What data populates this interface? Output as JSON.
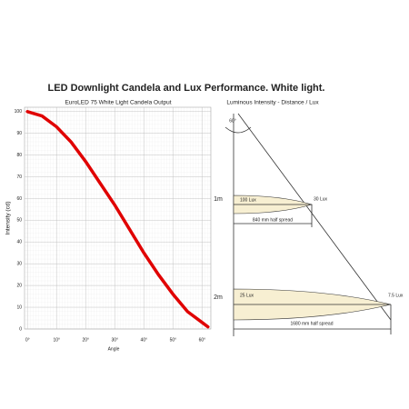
{
  "title": "LED Downlight Candela and Lux Performance. White light.",
  "chart_data": {
    "type": "line",
    "title": "EuroLED 75 White Light Candela Output",
    "x_label": "Angle",
    "y_label": "Intensity (cd)",
    "x": [
      0,
      5,
      10,
      15,
      20,
      25,
      30,
      35,
      40,
      45,
      50,
      55,
      60,
      62
    ],
    "values": [
      100,
      98,
      93,
      86,
      77,
      67,
      57,
      46,
      35,
      25,
      16,
      8,
      3,
      1
    ],
    "color": "#e00000",
    "xlim": [
      -1,
      63
    ],
    "xticks": [
      {
        "value": 0,
        "label": "0°"
      },
      {
        "value": 10,
        "label": "10°"
      },
      {
        "value": 20,
        "label": "20°"
      },
      {
        "value": 30,
        "label": "30°"
      },
      {
        "value": 40,
        "label": "40°"
      },
      {
        "value": 50,
        "label": "50°"
      },
      {
        "value": 60,
        "label": "60°"
      }
    ],
    "ylim": [
      0,
      102
    ],
    "yticks": [
      0,
      10,
      20,
      30,
      40,
      50,
      60,
      70,
      80,
      90,
      100
    ],
    "grid": true
  },
  "diagram": {
    "title": "Luminous Intensity - Distance / Lux",
    "angle": "60°",
    "rows": [
      {
        "distance": "1m",
        "center_lux": "100 Lux",
        "edge_lux": "30 Lux",
        "spread": "840 mm half spread"
      },
      {
        "distance": "2m",
        "center_lux": "25 Lux",
        "edge_lux": "7.5 Lux",
        "spread": "1680 mm half spread"
      }
    ]
  }
}
